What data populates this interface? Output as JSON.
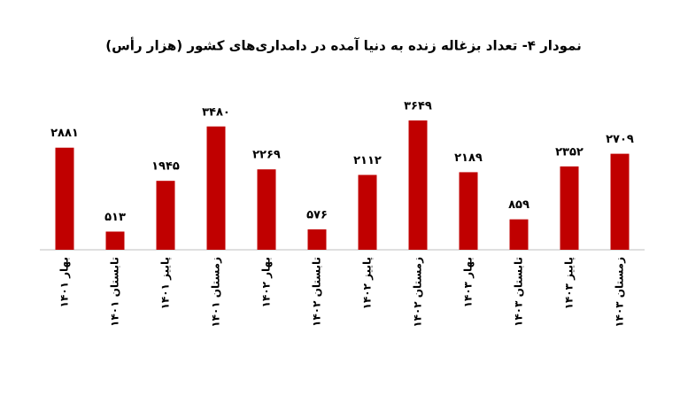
{
  "chart_data": {
    "type": "bar",
    "title": "نمودار ۴- تعداد بزغاله زنده به دنیا آمده در دامداری‌های کشور (هزار رأس)",
    "categories": [
      "بهار ۱۴۰۱",
      "تابستان ۱۴۰۱",
      "پاییز ۱۴۰۱",
      "زمستان ۱۴۰۱",
      "بهار ۱۴۰۲",
      "تابستان ۱۴۰۲",
      "پاییز ۱۴۰۲",
      "زمستان ۱۴۰۲",
      "بهار ۱۴۰۳",
      "تابستان ۱۴۰۳",
      "پاییز ۱۴۰۳",
      "زمستان ۱۴۰۳"
    ],
    "values": [
      2881,
      513,
      1945,
      3480,
      2269,
      576,
      2112,
      3649,
      2189,
      859,
      2352,
      2709
    ],
    "value_labels": [
      "۲۸۸۱",
      "۵۱۳",
      "۱۹۴۵",
      "۳۴۸۰",
      "۲۲۶۹",
      "۵۷۶",
      "۲۱۱۲",
      "۳۶۴۹",
      "۲۱۸۹",
      "۸۵۹",
      "۲۳۵۲",
      "۲۷۰۹"
    ],
    "color": "#c00000"
  }
}
